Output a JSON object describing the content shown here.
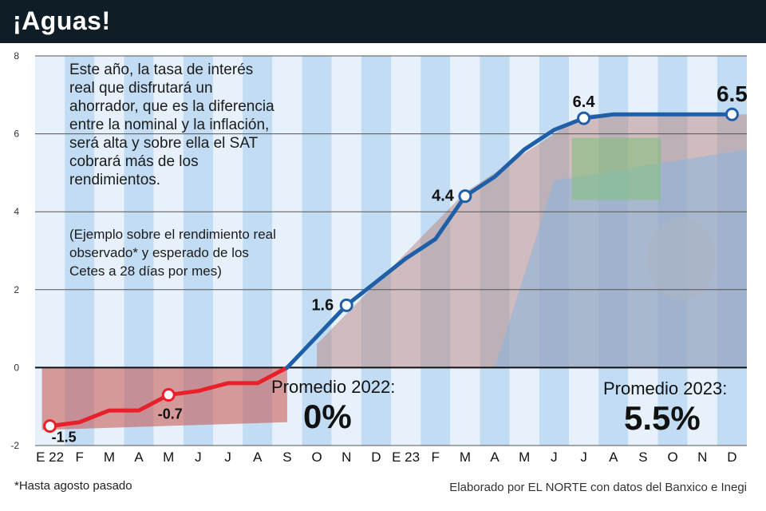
{
  "header": {
    "title": "¡Aguas!"
  },
  "intro_text": "Este año, la tasa de interés real que disfrutará un ahorrador, que es la diferencia entre la nominal y la inflación, será alta y sobre ella el SAT cobrará más de los rendimientos.",
  "note_text": "(Ejemplo sobre el rendimiento real observado* y esperado de los Cetes a 28 días por mes)",
  "averages": {
    "y2022_label": "Promedio 2022:",
    "y2022_value": "0%",
    "y2023_label": "Promedio 2023:",
    "y2023_value": "5.5%"
  },
  "footnote": "*Hasta agosto pasado",
  "source": "Elaborado por EL NORTE con datos del Banxico e Inegi",
  "colors": {
    "header_bg": "#0f1e26",
    "negative_line": "#e8202a",
    "positive_line": "#1f5fa8",
    "stripe_light": "#e6f1fb",
    "stripe_dark": "#c2dcf3"
  },
  "chart_data": {
    "type": "line",
    "x": [
      "E 22",
      "F",
      "M",
      "A",
      "M",
      "J",
      "J",
      "A",
      "S",
      "O",
      "N",
      "D",
      "E 23",
      "F",
      "M",
      "A",
      "M",
      "J",
      "J",
      "A",
      "S",
      "O",
      "N",
      "D"
    ],
    "series": [
      {
        "values": [
          -1.5,
          -1.4,
          -1.1,
          -1.1,
          -0.7,
          -0.6,
          -0.4,
          -0.4,
          0.0,
          0.8,
          1.6,
          2.2,
          2.8,
          3.3,
          4.4,
          4.9,
          5.6,
          6.1,
          6.4,
          6.5,
          6.5,
          6.5,
          6.5,
          6.5
        ]
      }
    ],
    "labeled_points": [
      {
        "index": 0,
        "label": "-1.5"
      },
      {
        "index": 4,
        "label": "-0.7"
      },
      {
        "index": 10,
        "label": "1.6"
      },
      {
        "index": 14,
        "label": "4.4"
      },
      {
        "index": 18,
        "label": "6.4"
      },
      {
        "index": 23,
        "label": "6.5"
      }
    ],
    "yticks": [
      "-2",
      "0",
      "2",
      "4",
      "6",
      "8"
    ],
    "ylim": [
      -2,
      8
    ],
    "grid": true
  }
}
